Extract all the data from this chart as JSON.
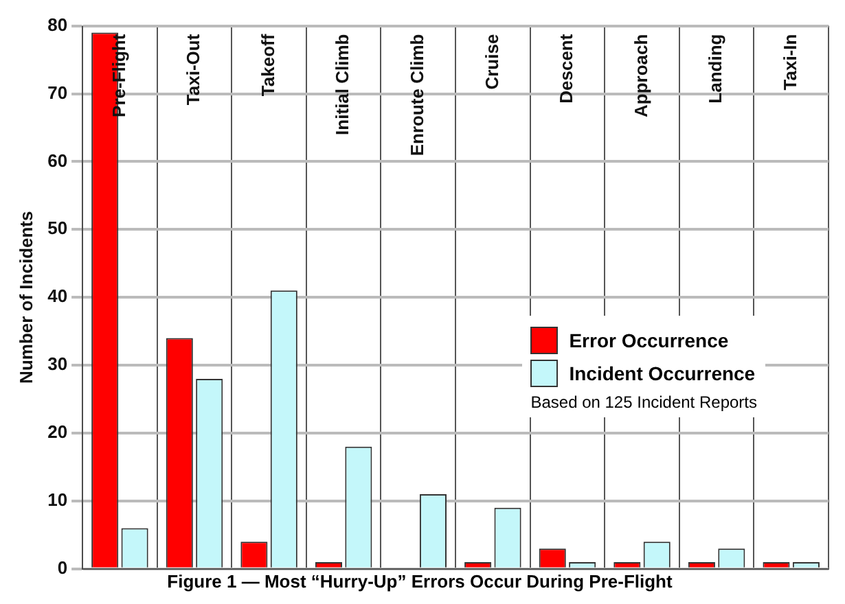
{
  "chart_data": {
    "type": "bar",
    "title": "Figure 1 — Most “Hurry-Up” Errors Occur During Pre-Flight",
    "ylabel": "Number of Incidents",
    "categories": [
      "Pre-Flight",
      "Taxi-Out",
      "Takeoff",
      "Initial Climb",
      "Enroute Climb",
      "Cruise",
      "Descent",
      "Approach",
      "Landing",
      "Taxi-In"
    ],
    "series": [
      {
        "name": "Error Occurrence",
        "color": "#ff0000",
        "values": [
          79,
          34,
          4,
          1,
          0,
          1,
          3,
          1,
          1,
          1
        ]
      },
      {
        "name": "Incident Occurrence",
        "color": "#c4f7fa",
        "values": [
          6,
          28,
          41,
          18,
          11,
          9,
          1,
          4,
          3,
          1
        ]
      }
    ],
    "ylim": [
      0,
      80
    ],
    "yticks": [
      0,
      10,
      20,
      30,
      40,
      50,
      60,
      70,
      80
    ],
    "grid": true,
    "legend": "right",
    "annotations": [
      "Based on 125 Incident Reports"
    ]
  }
}
